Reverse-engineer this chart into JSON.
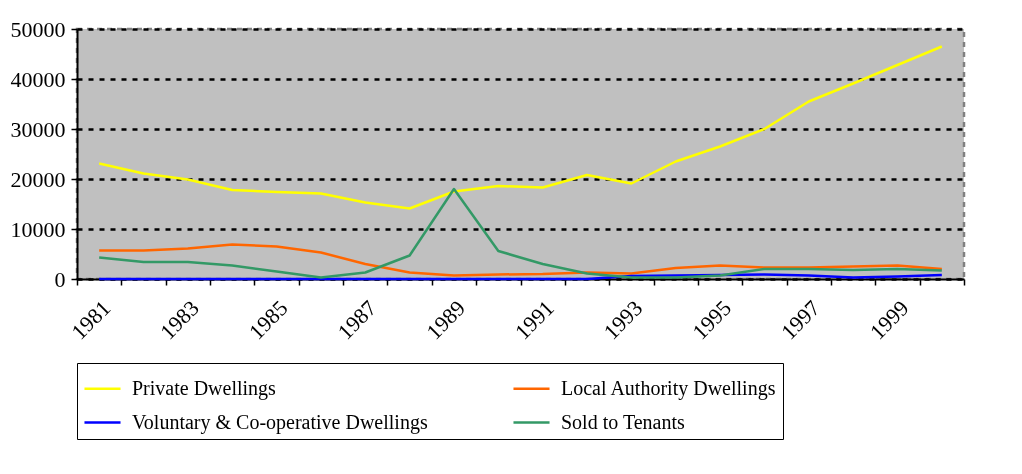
{
  "chart_data": {
    "type": "line",
    "categories": [
      "1981",
      null,
      "1983",
      null,
      "1985",
      null,
      "1987",
      null,
      "1989",
      null,
      "1991",
      null,
      "1993",
      null,
      "1995",
      null,
      "1997",
      null,
      "1999",
      null
    ],
    "series": [
      {
        "name": "Private Dwellings",
        "color": "#ffff00",
        "values": [
          23100,
          21100,
          19900,
          17800,
          17400,
          17100,
          15300,
          14100,
          17500,
          18600,
          18300,
          20800,
          19100,
          23500,
          26500,
          30000,
          35500,
          39100,
          42800,
          46500
        ]
      },
      {
        "name": "Local Authority Dwellings",
        "color": "#ff6600",
        "values": [
          5700,
          5700,
          6100,
          6900,
          6500,
          5300,
          3000,
          1300,
          700,
          900,
          1000,
          1300,
          1100,
          2200,
          2700,
          2300,
          2300,
          2500,
          2700,
          2000
        ]
      },
      {
        "name": "Voluntary & Co-operative Dwellings",
        "color": "#0000ff",
        "values": [
          0,
          0,
          0,
          0,
          0,
          0,
          0,
          0,
          0,
          0,
          0,
          0,
          600,
          700,
          800,
          900,
          700,
          300,
          500,
          800
        ]
      },
      {
        "name": "Sold to Tenants",
        "color": "#339966",
        "values": [
          4300,
          3400,
          3400,
          2700,
          1500,
          300,
          1300,
          4700,
          18000,
          5600,
          3000,
          1100,
          300,
          300,
          700,
          2000,
          2000,
          1800,
          2000,
          1700
        ]
      }
    ],
    "ylim": [
      0,
      50000
    ],
    "yticks": [
      0,
      10000,
      20000,
      30000,
      40000,
      50000
    ],
    "grid": "y",
    "legend": "bottom",
    "line_style": "solid"
  }
}
